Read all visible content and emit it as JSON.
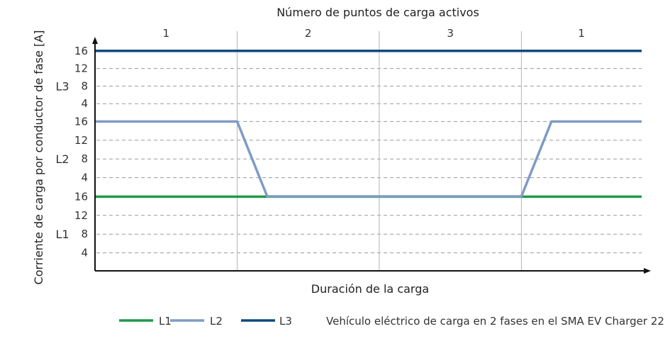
{
  "chart_data": {
    "type": "line",
    "top_axis_title": "Número de puntos de carga activos",
    "segments": [
      "1",
      "2",
      "3",
      "1"
    ],
    "xlabel": "Duración de la carga",
    "ylabel": "Corriente de carga por conductor de fase [A]",
    "bands": [
      {
        "name": "L3",
        "ticks": [
          "4",
          "8",
          "12",
          "16"
        ]
      },
      {
        "name": "L2",
        "ticks": [
          "4",
          "8",
          "12",
          "16"
        ]
      },
      {
        "name": "L1",
        "ticks": [
          "4",
          "8",
          "12",
          "16"
        ]
      }
    ],
    "xlim": [
      0,
      100
    ],
    "ylim": [
      0,
      16
    ],
    "series": [
      {
        "name": "L1",
        "color": "#1f9a4b",
        "band": "L1",
        "points": [
          [
            0,
            16
          ],
          [
            100,
            16
          ]
        ]
      },
      {
        "name": "L2",
        "color": "#7e9cc4",
        "band": "L2",
        "points": [
          [
            0,
            16
          ],
          [
            26,
            16
          ],
          [
            31.5,
            0
          ],
          [
            78,
            0
          ],
          [
            83.5,
            16
          ],
          [
            100,
            16
          ]
        ]
      },
      {
        "name": "L3",
        "color": "#0e4a7c",
        "band": "L3",
        "points": [
          [
            0,
            16
          ],
          [
            100,
            16
          ]
        ]
      }
    ],
    "segment_boundaries": [
      26,
      52,
      78
    ],
    "grid": true,
    "legend_position": "bottom",
    "legend_note": "Vehículo eléctrico de carga en 2 fases en el SMA EV Charger 22"
  }
}
